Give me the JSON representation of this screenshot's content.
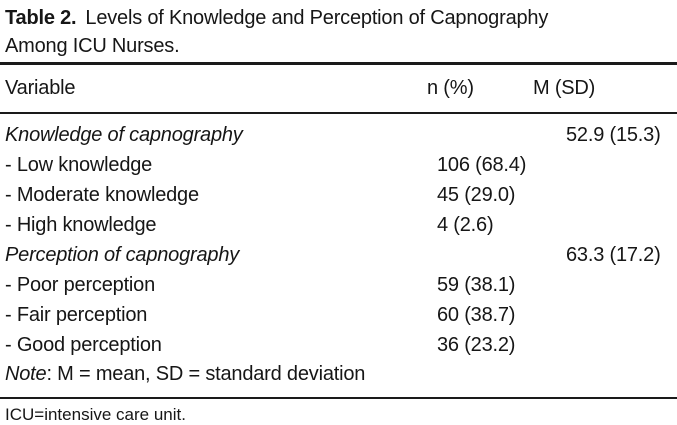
{
  "page": {
    "background": "#ffffff",
    "text_color": "#161616",
    "rule_color": "#1a1a1a"
  },
  "title": {
    "bold": "Table 2.",
    "line1_rest": "Levels of Knowledge and Perception of Capnography",
    "line2": "Among ICU Nurses."
  },
  "table": {
    "columns": [
      "Variable",
      "n (%)",
      "M (SD)"
    ],
    "rows": [
      {
        "label": "Knowledge of capnography",
        "n": "",
        "msd": "52.9 (15.3)"
      },
      {
        "label": "- Low knowledge",
        "n": "106 (68.4)",
        "msd": ""
      },
      {
        "label": "- Moderate knowledge",
        "n": "45 (29.0)",
        "msd": ""
      },
      {
        "label": "- High knowledge",
        "n": "4 (2.6)",
        "msd": ""
      },
      {
        "label": "Perception of capnography",
        "n": "",
        "msd": "63.3 (17.2)"
      },
      {
        "label": "- Poor perception",
        "n": "59 (38.1)",
        "msd": ""
      },
      {
        "label": "- Fair perception",
        "n": "60 (38.7)",
        "msd": ""
      },
      {
        "label": "- Good perception",
        "n": "36 (23.2)",
        "msd": ""
      }
    ],
    "note": {
      "prefix": "Note",
      "rest": ": M = mean, SD = standard deviation"
    }
  },
  "footer": {
    "abbreviation": "ICU=intensive care unit."
  }
}
